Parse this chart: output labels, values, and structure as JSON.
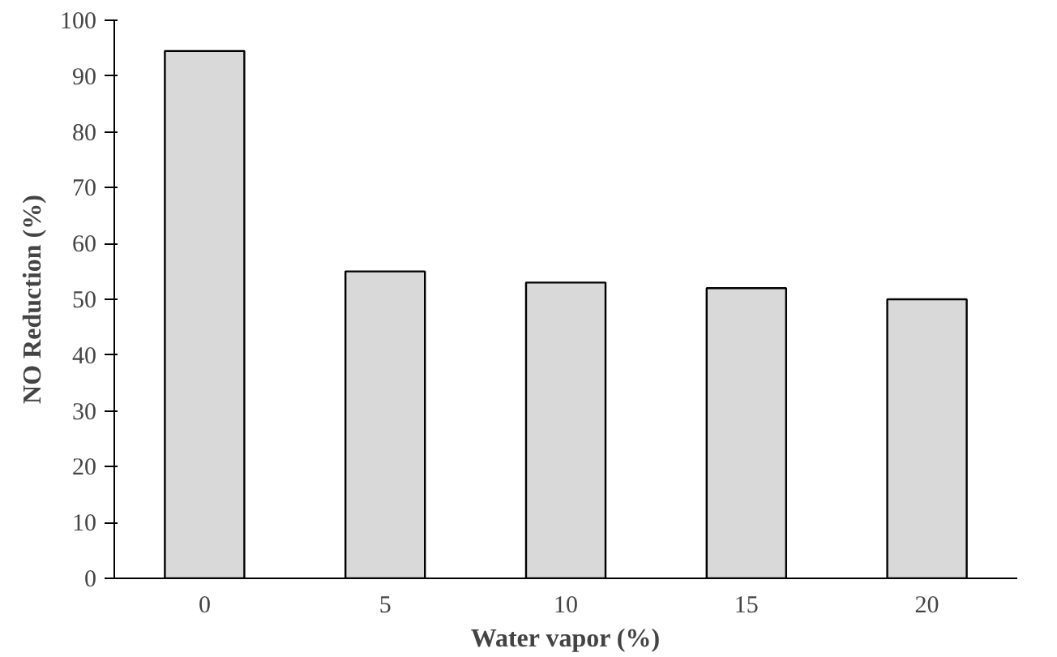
{
  "chart_data": {
    "type": "bar",
    "xlabel": "Water vapor (%)",
    "ylabel": "NO Reduction (%)",
    "categories": [
      "0",
      "5",
      "10",
      "15",
      "20"
    ],
    "values": [
      94.5,
      55,
      53,
      52,
      50
    ],
    "color": "#d9d9d9",
    "ylim": [
      0,
      100
    ],
    "yticks": [
      0,
      10,
      20,
      30,
      40,
      50,
      60,
      70,
      80,
      90,
      100
    ],
    "grid": false
  }
}
